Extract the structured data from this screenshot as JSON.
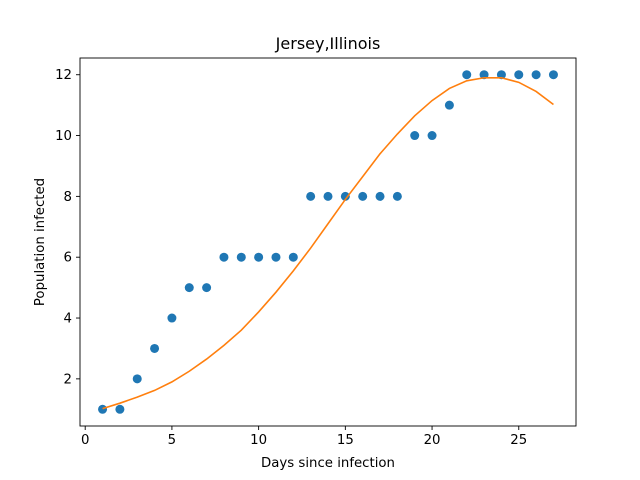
{
  "chart_data": {
    "type": "scatter",
    "title": "Jersey,Illinois",
    "xlabel": "Days since infection",
    "ylabel": "Population infected",
    "xlim": [
      -0.3,
      28.3
    ],
    "ylim": [
      0.45,
      12.55
    ],
    "xticks": [
      0,
      5,
      10,
      15,
      20,
      25
    ],
    "yticks": [
      2,
      4,
      6,
      8,
      10,
      12
    ],
    "grid": false,
    "series": [
      {
        "kind": "scatter",
        "color": "#1f77b4",
        "x": [
          1,
          2,
          3,
          4,
          5,
          6,
          7,
          8,
          9,
          10,
          11,
          12,
          13,
          14,
          15,
          16,
          17,
          18,
          19,
          20,
          21,
          22,
          23,
          24,
          25,
          26,
          27
        ],
        "y": [
          1,
          1,
          2,
          3,
          4,
          5,
          5,
          6,
          6,
          6,
          6,
          6,
          8,
          8,
          8,
          8,
          8,
          8,
          10,
          10,
          11,
          12,
          12,
          12,
          12,
          12,
          12
        ]
      },
      {
        "kind": "line",
        "color": "#ff7f0e",
        "x": [
          1,
          2,
          3,
          4,
          5,
          6,
          7,
          8,
          9,
          10,
          11,
          12,
          13,
          14,
          15,
          16,
          17,
          18,
          19,
          20,
          21,
          22,
          23,
          24,
          25,
          26,
          27
        ],
        "y": [
          1.02,
          1.2,
          1.4,
          1.62,
          1.9,
          2.25,
          2.65,
          3.1,
          3.6,
          4.2,
          4.85,
          5.55,
          6.3,
          7.1,
          7.9,
          8.65,
          9.4,
          10.05,
          10.65,
          11.15,
          11.55,
          11.8,
          11.9,
          11.9,
          11.75,
          11.45,
          11.02
        ]
      }
    ]
  }
}
